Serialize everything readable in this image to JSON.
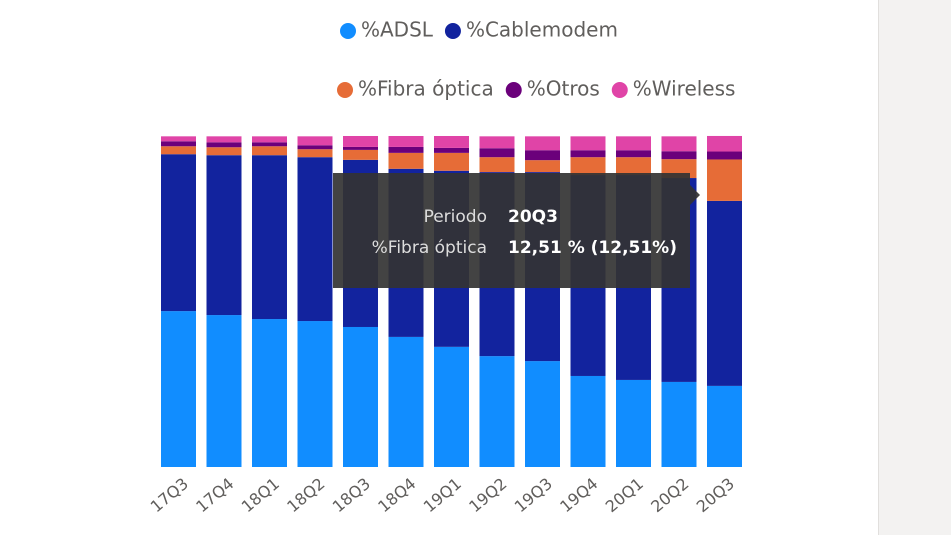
{
  "chart_data": {
    "type": "stacked_bar_100",
    "categories": [
      "17Q3",
      "17Q4",
      "18Q1",
      "18Q2",
      "18Q3",
      "18Q4",
      "19Q1",
      "19Q2",
      "19Q3",
      "19Q4",
      "20Q1",
      "20Q2",
      "20Q3"
    ],
    "series": [
      {
        "name": "%ADSL",
        "color": "#118DFF",
        "values": [
          47.1,
          45.9,
          44.7,
          44.1,
          42.3,
          39.3,
          36.3,
          33.5,
          32.0,
          27.5,
          26.3,
          25.7,
          24.5
        ]
      },
      {
        "name": "%Cablemodem",
        "color": "#12239E",
        "values": [
          47.4,
          48.3,
          49.5,
          49.5,
          50.5,
          50.8,
          53.2,
          55.6,
          57.1,
          60.7,
          61.9,
          61.6,
          55.9
        ]
      },
      {
        "name": "%Fibra óptica",
        "color": "#E66C37",
        "values": [
          2.4,
          2.4,
          2.7,
          2.4,
          3.0,
          4.8,
          5.4,
          4.5,
          3.6,
          5.4,
          5.4,
          5.7,
          12.51
        ]
      },
      {
        "name": "%Otros",
        "color": "#6B007B",
        "values": [
          1.5,
          1.5,
          1.2,
          1.2,
          0.9,
          1.8,
          1.5,
          2.7,
          3.0,
          2.1,
          2.1,
          2.4,
          2.4
        ]
      },
      {
        "name": "%Wireless",
        "color": "#E044A7",
        "values": [
          1.5,
          1.8,
          1.8,
          2.7,
          3.3,
          3.3,
          3.6,
          3.6,
          4.2,
          4.2,
          4.2,
          4.5,
          4.7
        ]
      }
    ],
    "ylim": [
      0,
      100
    ],
    "tooltip": [
      {
        "label": "Periodo",
        "value": "20Q3"
      },
      {
        "label": "%Fibra óptica",
        "value": "12,51 % (12,51%)"
      }
    ]
  }
}
